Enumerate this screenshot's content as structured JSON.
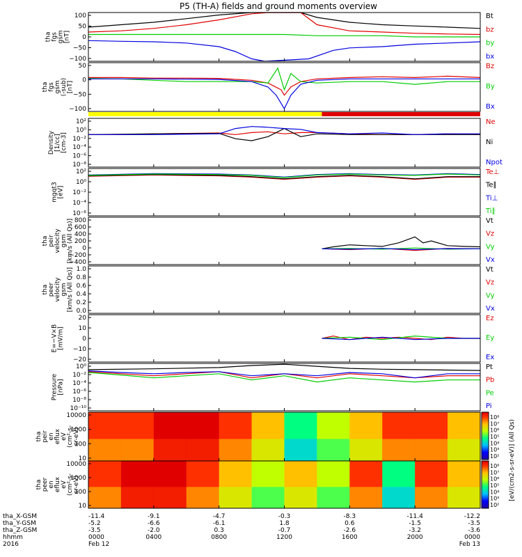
{
  "title": "P5 (TH-A) fields and ground moments overview",
  "footer": {
    "labels": [
      "tha_X-GSM",
      "tha_Y-GSM",
      "tha_Z-GSM",
      "hhmm",
      "2016"
    ],
    "columns": [
      [
        "-11.4",
        "-5.2",
        "-3.5",
        "0000",
        "Feb 12"
      ],
      [
        "-9.1",
        "-6.6",
        "-2.0",
        "0400",
        ""
      ],
      [
        "-4.7",
        "-6.1",
        "0.3",
        "0800",
        ""
      ],
      [
        "-0.3",
        "1.8",
        "-0.7",
        "1200",
        ""
      ],
      [
        "-8.3",
        "0.6",
        "-2.6",
        "1600",
        ""
      ],
      [
        "-11.4",
        "-1.5",
        "-3.2",
        "2000",
        ""
      ],
      [
        "-12.2",
        "-3.5",
        "-3.6",
        "0000",
        "Feb 13"
      ]
    ]
  },
  "colorbar": {
    "label": "[eV/(cm2-s-sr-eV)] (All Qs)",
    "ticks": [
      "10⁸",
      "10⁷",
      "10⁶",
      "10⁵",
      "10⁴",
      "10³",
      "10²"
    ]
  },
  "chart_data": [
    {
      "type": "line",
      "ylabel": [
        "tha",
        "fgs",
        "gsm",
        "[nT]"
      ],
      "yticks": [
        "100",
        "50",
        "0",
        "−50",
        "−100"
      ],
      "ylim": [
        -100,
        100
      ],
      "series": [
        {
          "name": "Bt",
          "color": "#000000",
          "x": [
            0,
            2,
            4,
            6,
            8,
            10,
            11,
            11.5,
            12.5,
            13,
            14,
            16,
            18,
            20,
            22,
            24
          ],
          "values": [
            40,
            50,
            60,
            75,
            90,
            100,
            100,
            100,
            100,
            100,
            80,
            60,
            50,
            45,
            40,
            35
          ]
        },
        {
          "name": "bz",
          "color": "#e00000",
          "x": [
            0,
            2,
            4,
            6,
            8,
            10,
            11,
            13,
            14,
            16,
            18,
            20,
            22,
            24
          ],
          "values": [
            20,
            25,
            35,
            50,
            70,
            95,
            100,
            100,
            50,
            25,
            20,
            15,
            12,
            10
          ]
        },
        {
          "name": "by",
          "color": "#00cc00",
          "x": [
            0,
            4,
            8,
            10,
            12,
            14,
            16,
            18,
            20,
            22,
            24
          ],
          "values": [
            10,
            10,
            10,
            10,
            10,
            5,
            5,
            5,
            0,
            0,
            0
          ]
        },
        {
          "name": "bx",
          "color": "#0000e0",
          "x": [
            0,
            2,
            4,
            6,
            8,
            9,
            10,
            10.8,
            13.5,
            15,
            16,
            18,
            20,
            22,
            24
          ],
          "values": [
            -15,
            -18,
            -20,
            -25,
            -40,
            -60,
            -90,
            -100,
            -90,
            -55,
            -45,
            -40,
            -30,
            -25,
            -20
          ]
        }
      ]
    },
    {
      "type": "line",
      "ylabel": [
        "tha",
        "fgs",
        "gsm",
        "(-sub)",
        "[nT]"
      ],
      "yticks": [
        "50",
        "0",
        "−50",
        "−100"
      ],
      "ylim": [
        -120,
        60
      ],
      "series": [
        {
          "name": "Bz",
          "color": "#e00000",
          "x": [
            0,
            2,
            4,
            6,
            8,
            10,
            11,
            11.8,
            12,
            12.4,
            13,
            14,
            16,
            18,
            20,
            22,
            24
          ],
          "values": [
            5,
            5,
            3,
            3,
            2,
            -5,
            -15,
            -40,
            -60,
            -30,
            -10,
            0,
            5,
            8,
            5,
            10,
            5
          ]
        },
        {
          "name": "By",
          "color": "#00cc00",
          "x": [
            0,
            2,
            4,
            6,
            8,
            10,
            11,
            11.6,
            12,
            12.4,
            13,
            14,
            16,
            18,
            20,
            22,
            24
          ],
          "values": [
            2,
            0,
            -5,
            -10,
            -10,
            -10,
            -15,
            40,
            -40,
            20,
            -10,
            -15,
            -10,
            -10,
            -20,
            -10,
            -10
          ]
        },
        {
          "name": "Bx",
          "color": "#0000e0",
          "x": [
            0,
            4,
            8,
            10,
            11,
            11.5,
            12,
            12.4,
            13,
            14,
            16,
            20,
            24
          ],
          "values": [
            0,
            0,
            -2,
            -10,
            -30,
            -60,
            -110,
            -60,
            -20,
            -5,
            0,
            0,
            0
          ]
        }
      ]
    },
    {
      "type": "line",
      "log": true,
      "ylabel": [
        "Density",
        "[1/cc]",
        "[cm-3]"
      ],
      "yticks": [
        "10²",
        "10⁰",
        "10⁻²",
        "10⁻⁴",
        "10⁻⁶",
        "10⁻⁸"
      ],
      "ylim": [
        -9,
        3
      ],
      "series": [
        {
          "name": "Ne",
          "color": "#e00000",
          "x": [
            0,
            2,
            4,
            6,
            8,
            9,
            10,
            11,
            12,
            13,
            14,
            16,
            18,
            20,
            22,
            24
          ],
          "values": [
            -1,
            -1,
            -0.8,
            -0.7,
            -0.6,
            -1,
            -0.5,
            -0.3,
            -0.8,
            -0.5,
            -0.5,
            -0.8,
            -1,
            -1,
            -0.8,
            -1
          ]
        },
        {
          "name": "Ni",
          "color": "#000000",
          "x": [
            0,
            4,
            8,
            9,
            10,
            11,
            12,
            13,
            14,
            16,
            20,
            24
          ],
          "values": [
            -1,
            -0.8,
            -0.7,
            -2,
            -2.5,
            -1.5,
            0.5,
            -1.5,
            -0.8,
            -1,
            -1,
            -1
          ]
        },
        {
          "name": "Npot",
          "color": "#0000e0",
          "x": [
            0,
            4,
            8,
            9,
            10,
            11,
            12,
            13,
            14,
            16,
            18,
            20,
            22,
            24
          ],
          "values": [
            -1,
            -1,
            -0.8,
            0.5,
            1,
            0.8,
            0.5,
            0.3,
            -0.5,
            -0.8,
            -0.6,
            -1,
            -0.8,
            -0.8
          ]
        }
      ]
    },
    {
      "type": "line",
      "log": true,
      "ylabel": [
        "mgqt3",
        "[eV]"
      ],
      "yticks": [
        "10²",
        "10⁰",
        "10⁻²",
        "10⁻⁴",
        "10⁻⁶"
      ],
      "ylim": [
        -7,
        4
      ],
      "series": [
        {
          "name": "Te⊥",
          "color": "#e00000",
          "x": [
            0,
            4,
            8,
            10,
            12,
            14,
            16,
            18,
            20,
            22,
            24
          ],
          "values": [
            2.2,
            2.5,
            2.3,
            2,
            1.5,
            2,
            2.3,
            2,
            1.5,
            2,
            2
          ]
        },
        {
          "name": "Te∥",
          "color": "#000000",
          "x": [
            0,
            4,
            8,
            10,
            12,
            14,
            16,
            18,
            20,
            22,
            24
          ],
          "values": [
            2.3,
            2.6,
            2.4,
            2.1,
            1.6,
            2.1,
            2.4,
            2.1,
            1.6,
            2.1,
            2.1
          ]
        },
        {
          "name": "Ti⊥",
          "color": "#0000e0",
          "x": [
            0,
            4,
            8,
            10,
            12,
            14,
            16,
            18,
            20,
            22,
            24
          ],
          "values": [
            2.5,
            2.8,
            2.7,
            2.5,
            2,
            2.6,
            2.8,
            2.6,
            2.5,
            2.8,
            2.6
          ]
        },
        {
          "name": "Ti∥",
          "color": "#00cc00",
          "x": [
            0,
            4,
            8,
            10,
            12,
            14,
            16,
            18,
            20,
            22,
            24
          ],
          "values": [
            2.4,
            2.7,
            2.6,
            2.4,
            1.9,
            2.5,
            2.7,
            2.5,
            2.4,
            2.7,
            2.5
          ]
        }
      ]
    },
    {
      "type": "line",
      "ylabel": [
        "tha",
        "peir",
        "velocity",
        "gsm",
        "[km/s (All Qs)]"
      ],
      "yticks": [
        "800",
        "600",
        "400",
        "200",
        "0",
        "−200",
        "−400"
      ],
      "ylim": [
        -400,
        800
      ],
      "series": [
        {
          "name": "Vt",
          "color": "#000000",
          "x": [
            14.3,
            15,
            16,
            17,
            18,
            19,
            20,
            20.5,
            21,
            22,
            23,
            24
          ],
          "values": [
            0,
            50,
            100,
            80,
            60,
            150,
            300,
            150,
            200,
            80,
            60,
            50
          ]
        },
        {
          "name": "Vz",
          "color": "#e00000",
          "x": [
            14.3,
            16,
            18,
            20,
            22,
            24
          ],
          "values": [
            0,
            -20,
            10,
            -40,
            10,
            0
          ]
        },
        {
          "name": "Vy",
          "color": "#00cc00",
          "x": [
            14.3,
            16,
            18,
            20,
            22,
            24
          ],
          "values": [
            0,
            10,
            -10,
            20,
            -10,
            0
          ]
        },
        {
          "name": "Vx",
          "color": "#0000e0",
          "x": [
            14.3,
            16,
            18,
            20,
            22,
            24
          ],
          "values": [
            0,
            -10,
            10,
            -20,
            5,
            0
          ]
        }
      ]
    },
    {
      "type": "line",
      "ylabel": [
        "tha",
        "peer",
        "velocity",
        "gsm",
        "[km/s (All Qs)]"
      ],
      "yticks": [
        "1.0",
        "0.8",
        "0.6",
        "0.4",
        "0.2",
        "0.0"
      ],
      "ylim": [
        0,
        1
      ],
      "series": [
        {
          "name": "Vt",
          "color": "#000000",
          "x": [],
          "values": []
        },
        {
          "name": "Vz",
          "color": "#e00000",
          "x": [],
          "values": []
        },
        {
          "name": "Vy",
          "color": "#00cc00",
          "x": [],
          "values": []
        },
        {
          "name": "Vx",
          "color": "#0000e0",
          "x": [],
          "values": []
        }
      ]
    },
    {
      "type": "line",
      "ylabel": [
        "E=−V×B",
        "[mV/m]"
      ],
      "yticks": [
        "20",
        "10",
        "0",
        "−10",
        "−20"
      ],
      "ylim": [
        -20,
        20
      ],
      "series": [
        {
          "name": "Ez",
          "color": "#e00000",
          "x": [
            14.3,
            15,
            16,
            17,
            18,
            19,
            20,
            21,
            22,
            23,
            24
          ],
          "values": [
            0,
            2,
            -1,
            1,
            0,
            1,
            0,
            -1,
            1,
            0,
            0
          ]
        },
        {
          "name": "Ey",
          "color": "#00cc00",
          "x": [
            14.3,
            16,
            18,
            20,
            22,
            24
          ],
          "values": [
            0,
            1,
            -1,
            2,
            0,
            0
          ]
        },
        {
          "name": "Ex",
          "color": "#0000e0",
          "x": [
            14.3,
            16,
            18,
            20,
            22,
            24
          ],
          "values": [
            0,
            -1,
            1,
            -1,
            0,
            0
          ]
        }
      ]
    },
    {
      "type": "line",
      "log": true,
      "ylabel": [
        "Pressure",
        "[nPa]"
      ],
      "yticks": [
        "10⁰",
        "10⁻²",
        "10⁻⁴",
        "10⁻⁶",
        "10⁻⁸",
        "10⁻¹⁰"
      ],
      "ylim": [
        -10.5,
        1
      ],
      "series": [
        {
          "name": "Pt",
          "color": "#000000",
          "x": [
            0,
            4,
            8,
            10,
            12,
            14,
            16,
            18,
            20,
            22,
            24
          ],
          "values": [
            -0.5,
            -0.3,
            0,
            0.5,
            0.8,
            0.3,
            -0.2,
            -0.4,
            -0.5,
            -0.6,
            -0.7
          ]
        },
        {
          "name": "Pb",
          "color": "#e00000",
          "x": [
            0,
            2,
            4,
            6,
            8,
            10,
            12,
            14,
            16,
            18,
            20,
            22,
            24
          ],
          "values": [
            -1,
            -1.5,
            -2,
            -1.5,
            -1,
            -2.5,
            -1.5,
            -2.5,
            -1.5,
            -2,
            -2.5,
            -2,
            -2
          ]
        },
        {
          "name": "Pe",
          "color": "#00cc00",
          "x": [
            0,
            2,
            4,
            6,
            8,
            10,
            12,
            14,
            16,
            18,
            20,
            22,
            24
          ],
          "values": [
            -1.2,
            -1.8,
            -2.5,
            -2,
            -1.5,
            -3,
            -2,
            -3.5,
            -2.5,
            -3,
            -3.5,
            -3,
            -3
          ]
        },
        {
          "name": "Pi",
          "color": "#0000e0",
          "x": [
            0,
            2,
            4,
            6,
            8,
            10,
            12,
            14,
            16,
            18,
            20,
            22,
            24
          ],
          "values": [
            -0.8,
            -1.2,
            -1.5,
            -1.2,
            -1,
            -2,
            -1.5,
            -2,
            -1.2,
            -1.5,
            -2.5,
            -1.5,
            -1.5
          ]
        }
      ]
    },
    {
      "type": "heatmap",
      "ylabel": [
        "tha",
        "peir",
        "en",
        "eflux",
        "eV",
        "(cm²-s-",
        "sr-eV)"
      ],
      "yticks": [
        "10000",
        "1000",
        "100",
        "10"
      ],
      "log": true,
      "description_values": [
        [
          6,
          6,
          7,
          7,
          6,
          5,
          3,
          4,
          5,
          6,
          6,
          5
        ]
      ]
    },
    {
      "type": "heatmap",
      "ylabel": [
        "tha",
        "peer",
        "en",
        "eflux",
        "eV",
        "(cm²-s-",
        "sr-eV)"
      ],
      "yticks": [
        "10000",
        "1000",
        "100",
        "10"
      ],
      "log": true,
      "description_values": [
        [
          6,
          7,
          7,
          6,
          5,
          4,
          5,
          4,
          6,
          3,
          6,
          5
        ]
      ]
    }
  ]
}
